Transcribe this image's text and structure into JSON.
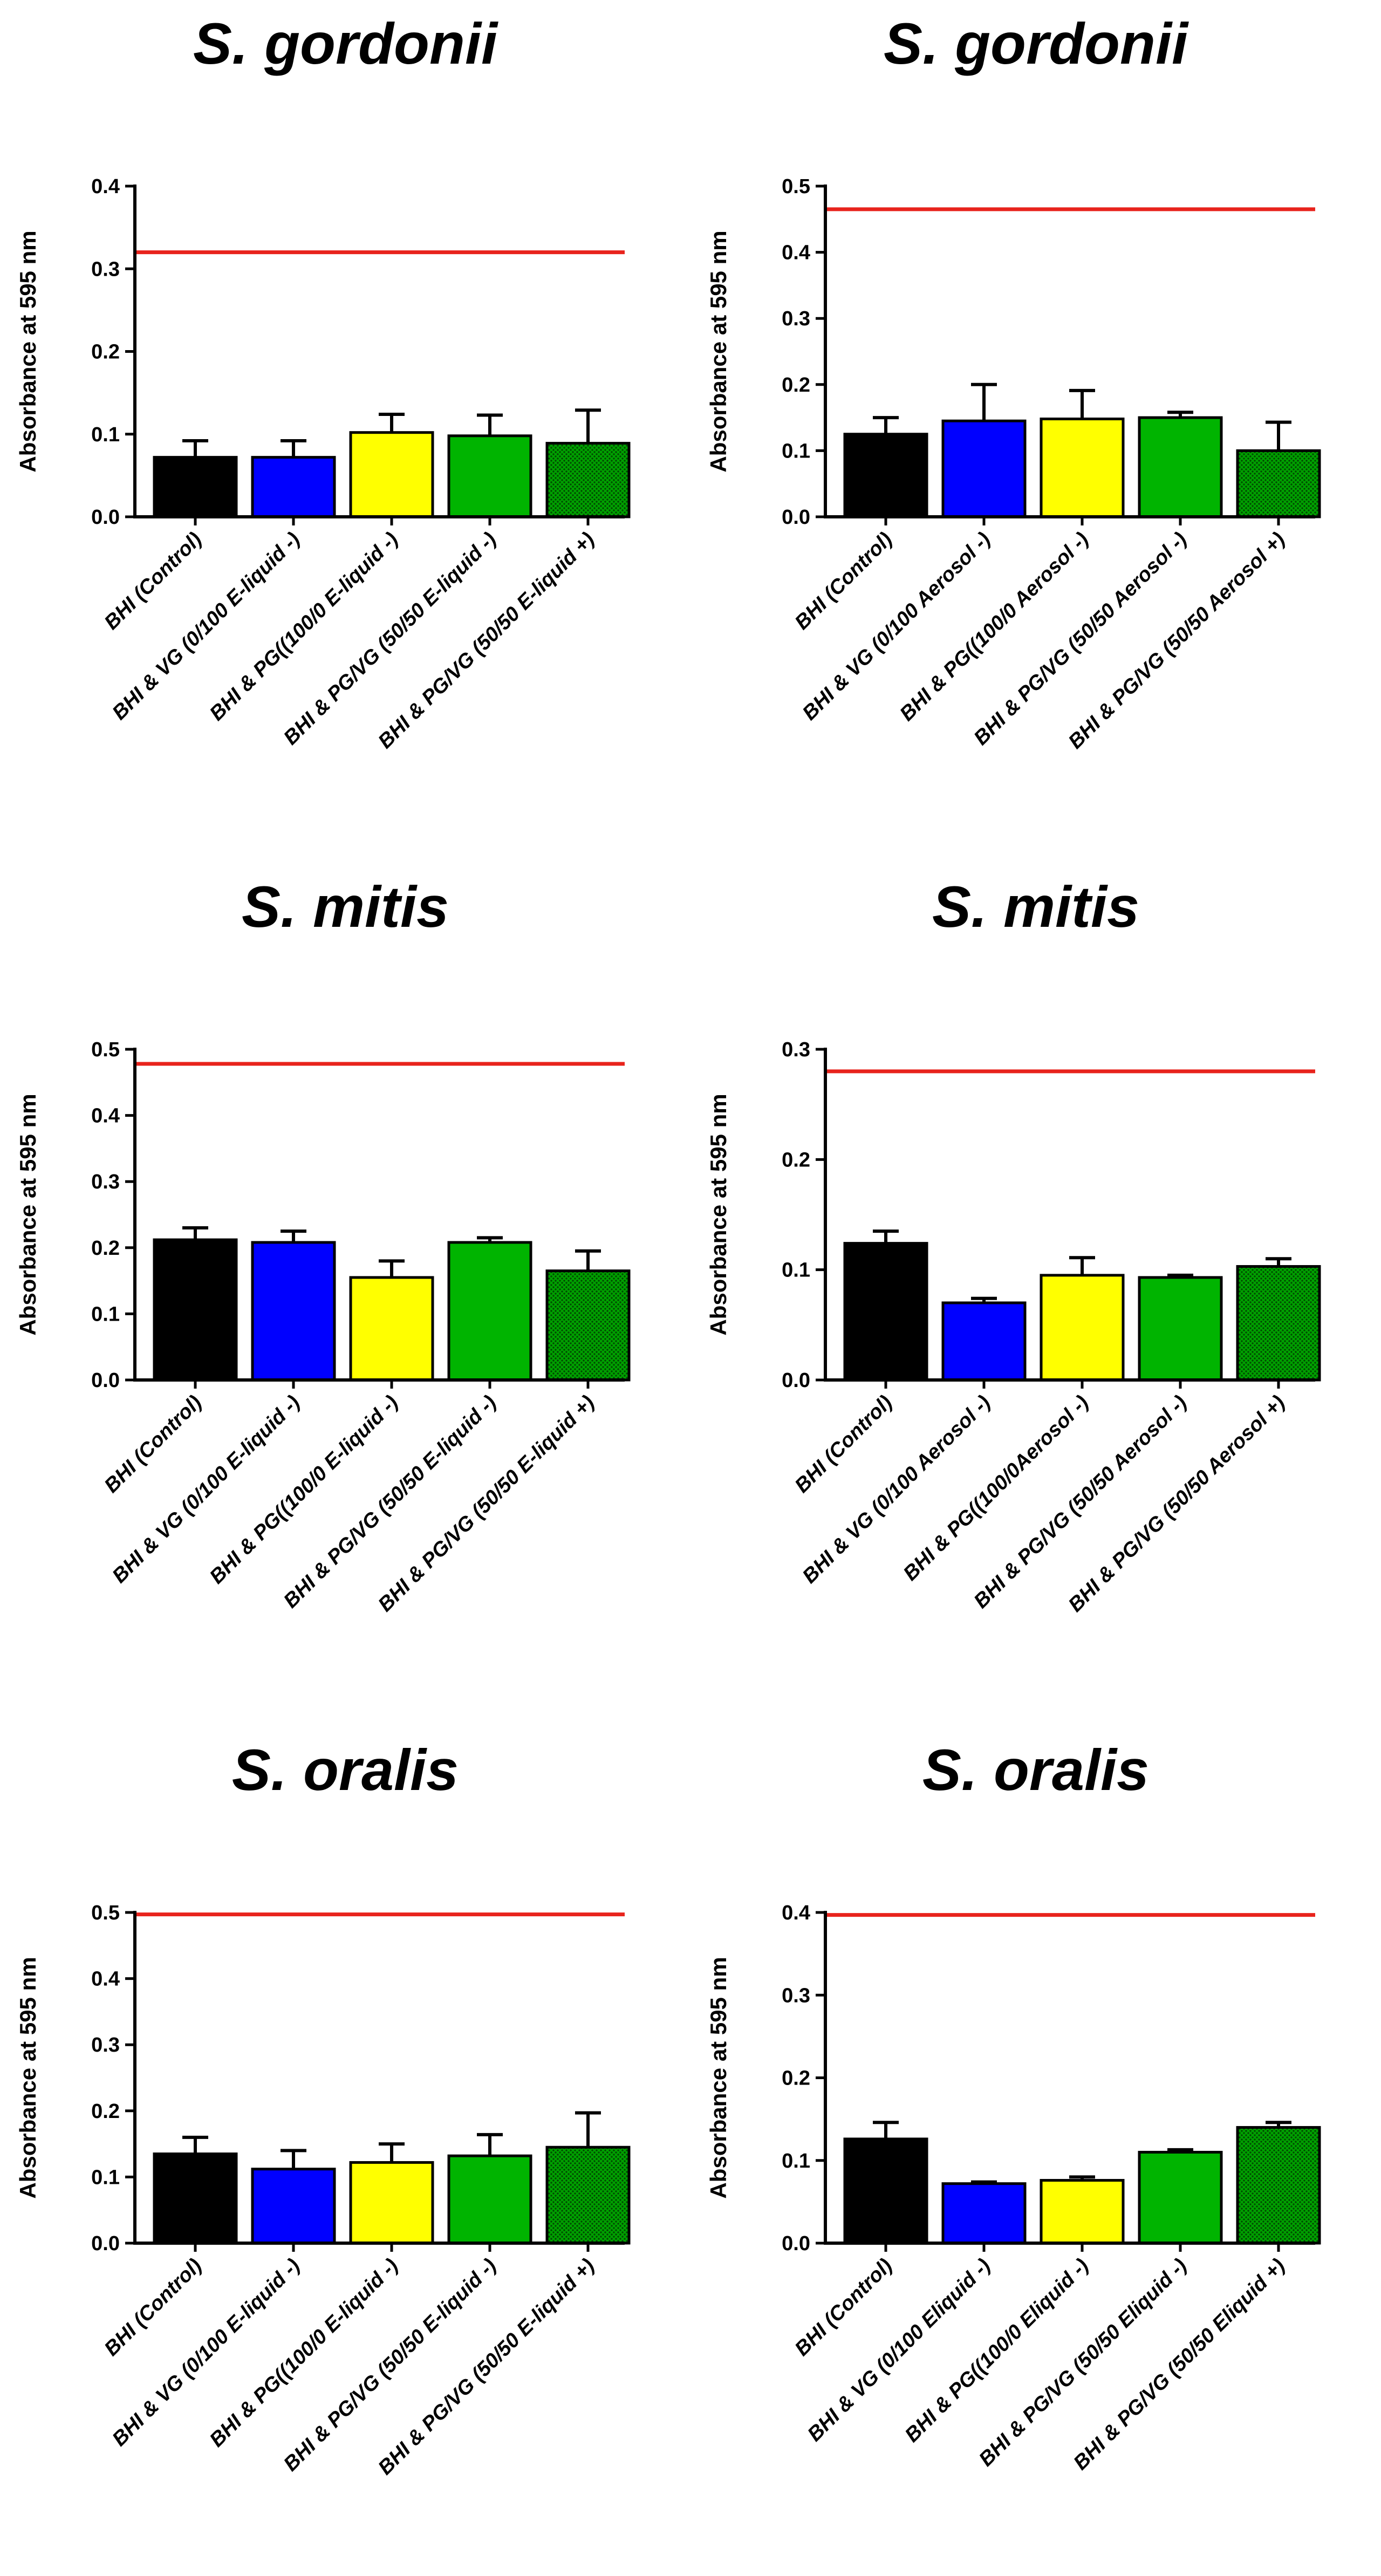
{
  "colors": {
    "reference_line": "#e8231c",
    "axis": "#000000",
    "error_bar": "#000000"
  },
  "chart_data": [
    {
      "type": "bar",
      "title": "S. gordonii",
      "ylabel": "Absorbance at 595 nm",
      "ylim": [
        0,
        0.4
      ],
      "yticks": [
        "0.0",
        "0.1",
        "0.2",
        "0.3",
        "0.4"
      ],
      "reference_value": 0.32,
      "categories": [
        "BHI (Control)",
        "BHI & VG (0/100 E-liquid -)",
        "BHI & PG((100/0 E-liquid -)",
        "BHI & PG/VG (50/50 E-liquid -)",
        "BHI & PG/VG (50/50 E-liquid +)"
      ],
      "values": [
        0.072,
        0.072,
        0.102,
        0.098,
        0.089
      ],
      "errors": [
        0.02,
        0.02,
        0.022,
        0.025,
        0.04
      ],
      "bar_colors": [
        "#000000",
        "#0000ff",
        "#ffff00",
        "#00b400",
        "#00a000"
      ]
    },
    {
      "type": "bar",
      "title": "S. gordonii",
      "ylabel": "Absorbance at 595 nm",
      "ylim": [
        0,
        0.5
      ],
      "yticks": [
        "0.0",
        "0.1",
        "0.2",
        "0.3",
        "0.4",
        "0.5"
      ],
      "reference_value": 0.465,
      "categories": [
        "BHI (Control)",
        "BHI & VG (0/100 Aerosol -)",
        "BHI & PG((100/0 Aerosol -)",
        "BHI & PG/VG (50/50 Aerosol -)",
        "BHI & PG/VG (50/50 Aerosol +)"
      ],
      "values": [
        0.125,
        0.145,
        0.148,
        0.15,
        0.1
      ],
      "errors": [
        0.025,
        0.055,
        0.043,
        0.008,
        0.043
      ],
      "bar_colors": [
        "#000000",
        "#0000ff",
        "#ffff00",
        "#00b400",
        "#00a000"
      ]
    },
    {
      "type": "bar",
      "title": "S. mitis",
      "ylabel": "Absorbance at 595 nm",
      "ylim": [
        0,
        0.5
      ],
      "yticks": [
        "0.0",
        "0.1",
        "0.2",
        "0.3",
        "0.4",
        "0.5"
      ],
      "reference_value": 0.478,
      "categories": [
        "BHI (Control)",
        "BHI & VG (0/100 E-liquid -)",
        "BHI & PG((100/0 E-liquid -)",
        "BHI & PG/VG (50/50 E-liquid -)",
        "BHI & PG/VG (50/50 E-liquid +)"
      ],
      "values": [
        0.212,
        0.208,
        0.155,
        0.208,
        0.165
      ],
      "errors": [
        0.018,
        0.017,
        0.025,
        0.007,
        0.03
      ],
      "bar_colors": [
        "#000000",
        "#0000ff",
        "#ffff00",
        "#00b400",
        "#00a000"
      ]
    },
    {
      "type": "bar",
      "title": "S. mitis",
      "ylabel": "Absorbance at 595 nm",
      "ylim": [
        0,
        0.3
      ],
      "yticks": [
        "0.0",
        "0.1",
        "0.2",
        "0.3"
      ],
      "reference_value": 0.28,
      "categories": [
        "BHI (Control)",
        "BHI & VG (0/100 Aerosol -)",
        "BHI & PG((100/0Aerosol -)",
        "BHI & PG/VG (50/50 Aerosol -)",
        "BHI & PG/VG (50/50 Aerosol +)"
      ],
      "values": [
        0.124,
        0.07,
        0.095,
        0.093,
        0.103
      ],
      "errors": [
        0.011,
        0.004,
        0.016,
        0.002,
        0.007
      ],
      "bar_colors": [
        "#000000",
        "#0000ff",
        "#ffff00",
        "#00b400",
        "#00a000"
      ]
    },
    {
      "type": "bar",
      "title": "S. oralis",
      "ylabel": "Absorbance at 595 nm",
      "ylim": [
        0,
        0.5
      ],
      "yticks": [
        "0.0",
        "0.1",
        "0.2",
        "0.3",
        "0.4",
        "0.5"
      ],
      "reference_value": 0.497,
      "categories": [
        "BHI (Control)",
        "BHI & VG (0/100 E-liquid -)",
        "BHI & PG((100/0 E-liquid -)",
        "BHI & PG/VG (50/50 E-liquid -)",
        "BHI & PG/VG (50/50 E-liquid +)"
      ],
      "values": [
        0.135,
        0.112,
        0.122,
        0.132,
        0.145
      ],
      "errors": [
        0.025,
        0.028,
        0.028,
        0.032,
        0.052
      ],
      "bar_colors": [
        "#000000",
        "#0000ff",
        "#ffff00",
        "#00b400",
        "#00a000"
      ]
    },
    {
      "type": "bar",
      "title": "S. oralis",
      "ylabel": "Absorbance at 595 nm",
      "ylim": [
        0,
        0.4
      ],
      "yticks": [
        "0.0",
        "0.1",
        "0.2",
        "0.3",
        "0.4"
      ],
      "reference_value": 0.397,
      "categories": [
        "BHI (Control)",
        "BHI & VG (0/100 Eliquid -)",
        "BHI & PG((100/0 Eliquid -)",
        "BHI & PG/VG (50/50 Eliquid -)",
        "BHI & PG/VG (50/50 Eliquid +)"
      ],
      "values": [
        0.126,
        0.072,
        0.076,
        0.11,
        0.14
      ],
      "errors": [
        0.02,
        0.002,
        0.004,
        0.003,
        0.006
      ],
      "bar_colors": [
        "#000000",
        "#0000ff",
        "#ffff00",
        "#00b400",
        "#00a000"
      ]
    }
  ]
}
